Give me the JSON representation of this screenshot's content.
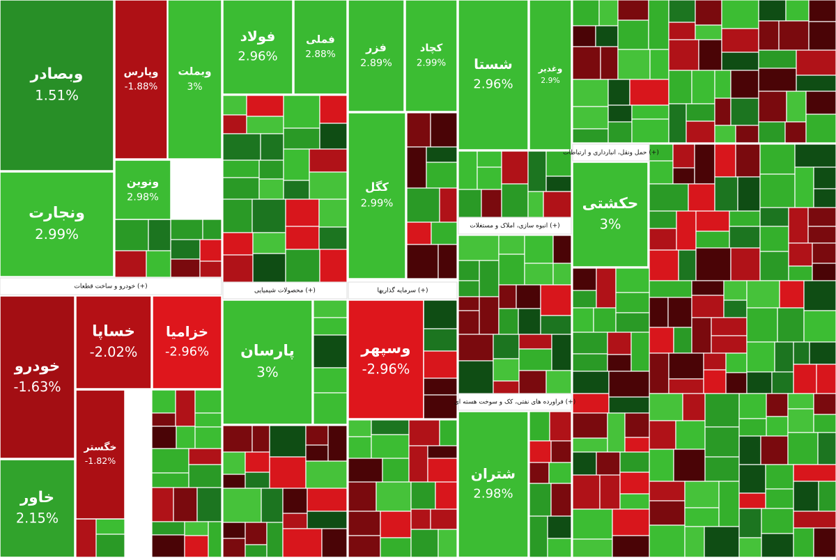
{
  "chart_data": {
    "type": "treemap",
    "colors": {
      "positive_low": "#14601a",
      "positive_high": "#3cbd33",
      "negative_low": "#5a0508",
      "negative_high": "#e0161c"
    },
    "groups": [
      {
        "tiles": [
          "وبصادر",
          "وپارس",
          "وبملت",
          "ونجارت",
          "ونوین"
        ],
        "values": [
          1.51,
          -1.88,
          3,
          2.99,
          2.98
        ],
        "value_labels": [
          "1.51%",
          "-1.88%",
          "3%",
          "2.99%",
          "2.98%"
        ]
      },
      {
        "name": "خودرو و ساخت قطعات (+)",
        "tiles": [
          "خودرو",
          "خساپا",
          "خزامیا",
          "خگستر",
          "خاور"
        ],
        "values": [
          -1.63,
          -2.02,
          -2.96,
          -1.82,
          2.15
        ],
        "value_labels": [
          "-1.63%",
          "-2.02%",
          "-2.96%",
          "-1.82%",
          "2.15%"
        ]
      },
      {
        "tiles": [
          "فولاد",
          "فملی"
        ],
        "values": [
          2.96,
          2.88
        ],
        "value_labels": [
          "2.96%",
          "2.88%"
        ]
      },
      {
        "name": "محصولات شیمیایی (+)",
        "tiles": [
          "پارسان"
        ],
        "values": [
          3
        ],
        "value_labels": [
          "3%"
        ]
      },
      {
        "tiles": [
          "فزر",
          "کچاد",
          "کگل"
        ],
        "values": [
          2.89,
          2.99,
          2.99
        ],
        "value_labels": [
          "2.89%",
          "2.99%",
          "2.99%"
        ]
      },
      {
        "name": "سرمایه گذاریها (+)",
        "tiles": [
          "وسپهر"
        ],
        "values": [
          -2.96
        ],
        "value_labels": [
          "-2.96%"
        ]
      },
      {
        "tiles": [
          "شستا",
          "وغدیر"
        ],
        "values": [
          2.96,
          2.9
        ],
        "value_labels": [
          "2.96%",
          "2.9%"
        ]
      },
      {
        "name": "انبوه سازی، املاک و مستغلات (+)",
        "tiles": [],
        "values": [],
        "value_labels": []
      },
      {
        "name": "فراورده های نفتی، کک و سوخت هسته ای (+)",
        "tiles": [
          "شتران"
        ],
        "values": [
          2.98
        ],
        "value_labels": [
          "2.98%"
        ]
      },
      {
        "name": "حمل ونقل، انبارداری و ارتباطات (+)",
        "tiles": [
          "حکشتی"
        ],
        "values": [
          3
        ],
        "value_labels": [
          "3%"
        ]
      }
    ]
  }
}
